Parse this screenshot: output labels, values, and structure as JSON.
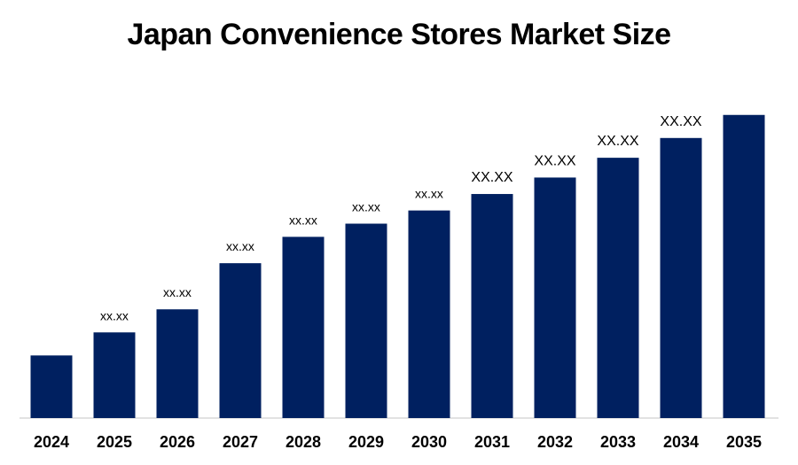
{
  "chart_data": {
    "type": "bar",
    "title": "Japan Convenience Stores Market Size",
    "xlabel": "",
    "ylabel": "",
    "categories": [
      "2024",
      "2025",
      "2026",
      "2027",
      "2028",
      "2029",
      "2030",
      "2031",
      "2032",
      "2033",
      "2034",
      "2035"
    ],
    "values": [
      19,
      26,
      33,
      47,
      55,
      59,
      63,
      68,
      73,
      79,
      85,
      92
    ],
    "data_labels": [
      "",
      "xx.xx",
      "xx.xx",
      "xx.xx",
      "xx.xx",
      "xx.xx",
      "xx.xx",
      "XX.XX",
      "XX.XX",
      "XX.XX",
      "XX.XX",
      ""
    ],
    "ylim": [
      0,
      100
    ],
    "grid": false,
    "legend": "none",
    "bar_color": "#002060"
  }
}
